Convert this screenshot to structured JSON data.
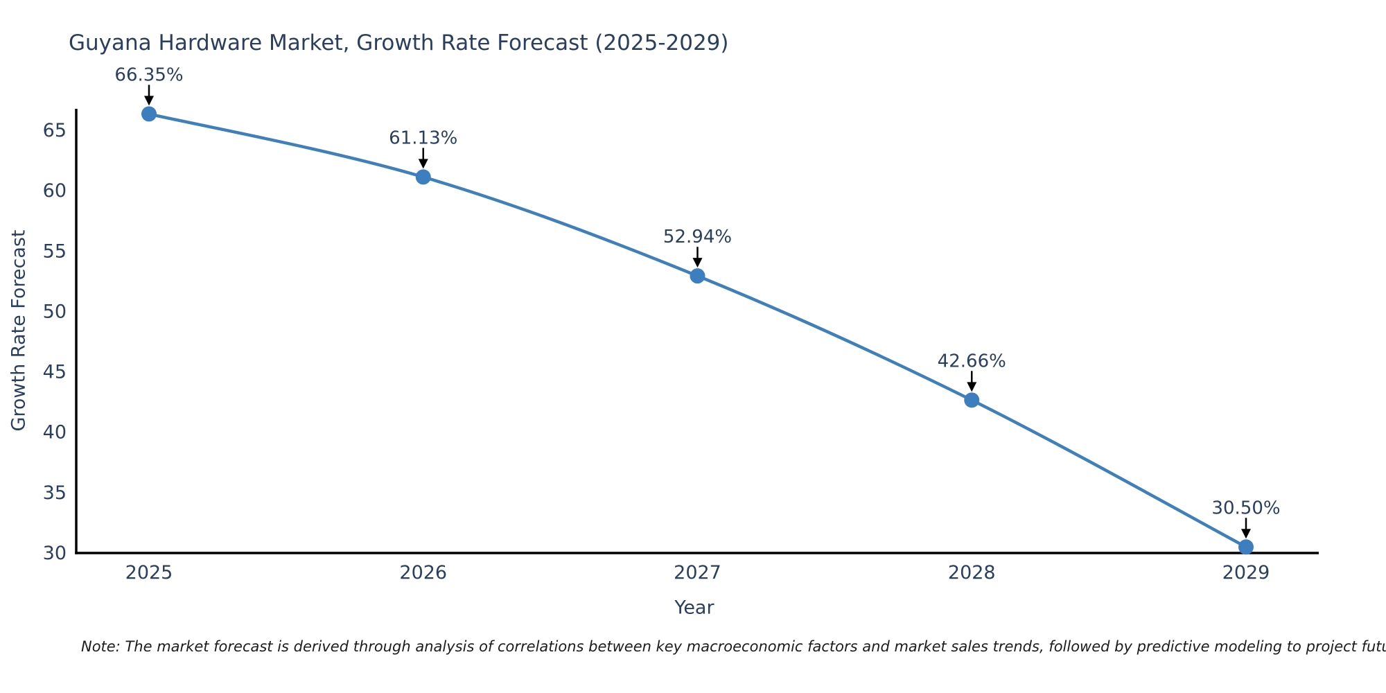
{
  "title": "Guyana Hardware Market, Growth Rate Forecast (2025-2029)",
  "note": "Note: The market forecast is derived through analysis of correlations between key macroeconomic factors and market sales trends, followed by predictive modeling to project future sales.",
  "chart_data": {
    "type": "line",
    "title": "Guyana Hardware Market, Growth Rate Forecast (2025-2029)",
    "xlabel": "Year",
    "ylabel": "Growth Rate Forecast",
    "categories": [
      "2025",
      "2026",
      "2027",
      "2028",
      "2029"
    ],
    "x": [
      2025,
      2026,
      2027,
      2028,
      2029
    ],
    "series": [
      {
        "name": "Growth Rate Forecast",
        "values": [
          66.35,
          61.13,
          52.94,
          42.66,
          30.5
        ],
        "point_labels": [
          "66.35%",
          "61.13%",
          "52.94%",
          "42.66%",
          "30.50%"
        ]
      }
    ],
    "yticks": [
      30,
      35,
      40,
      45,
      50,
      55,
      60,
      65
    ],
    "ylim": [
      30,
      66.8
    ],
    "grid": false,
    "legend_position": "none",
    "colors": {
      "line": "#3f7fba",
      "marker": "#3d7ebf",
      "axis_line": "#000000",
      "text": "#2a3f5f",
      "annotation_arrow": "#000000"
    },
    "annotations_style": "value labels above points with downward black arrows"
  }
}
